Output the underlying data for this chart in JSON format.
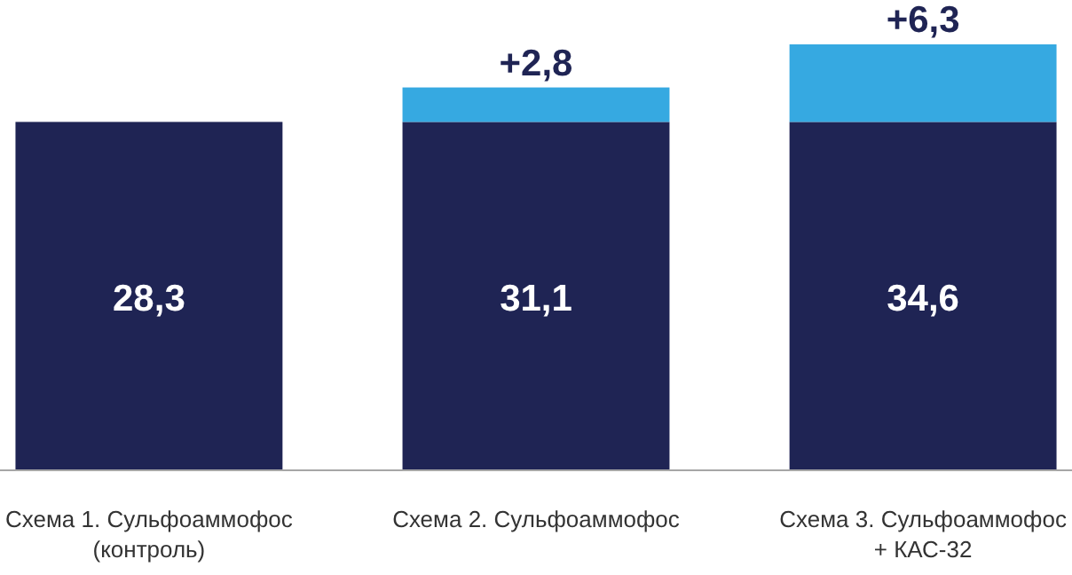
{
  "chart_data": {
    "type": "bar",
    "stacked": true,
    "categories": [
      "Схема 1. Сульфоаммофос\n(контроль)",
      "Схема 2. Сульфоаммофос",
      "Схема 3. Сульфоаммофос\n+ КАС-32"
    ],
    "series": [
      {
        "color": "#1f2454",
        "values": [
          28.3,
          28.3,
          28.3
        ]
      },
      {
        "color": "#36a9e1",
        "values": [
          null,
          2.8,
          6.3
        ],
        "value_labels": [
          null,
          "+2,8",
          "+6,3"
        ]
      }
    ],
    "totals": [
      "28,3",
      "31,1",
      "34,6"
    ],
    "tick_labels": "x"
  }
}
